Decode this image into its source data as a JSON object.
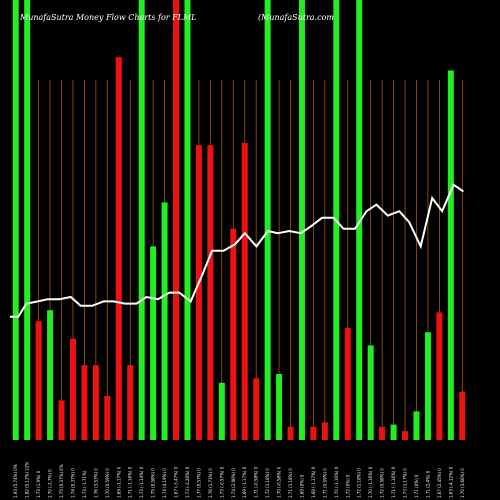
{
  "chart_data": {
    "type": "bar",
    "title": "MunafaSutra  Money Flow  Charts for FLML",
    "watermark": "(MunafaSutra.com",
    "ylim": [
      0,
      100
    ],
    "grid": "vertical",
    "colors": {
      "background": "#000000",
      "up": "#22ee22",
      "down": "#ee1111",
      "grid": "#a05a14",
      "line": "#ffffff"
    },
    "bars": [
      {
        "category": "1.93 (5.74%) 0%",
        "value": 100,
        "color": "up"
      },
      {
        "category": "1.82 (5.12%) 22%",
        "value": 100,
        "color": "up"
      },
      {
        "category": "1.73 (1.9%) 0",
        "value": 27,
        "color": "down"
      },
      {
        "category": "1.70 (-2.7%) 0",
        "value": 29.5,
        "color": "up"
      },
      {
        "category": "1.75 (0.37%) 6%",
        "value": 9,
        "color": "down"
      },
      {
        "category": "1.74 (0.37%) 0",
        "value": 23,
        "color": "down"
      },
      {
        "category": "1.73 (-1.71%)",
        "value": 17,
        "color": "down"
      },
      {
        "category": "1.76 (3.53%) 0",
        "value": 17,
        "color": "down"
      },
      {
        "category": "1.70 (0.59%) 0",
        "value": 10,
        "color": "down"
      },
      {
        "category": "1.69 (-1.17%) 0",
        "value": 87,
        "color": "down"
      },
      {
        "category": "1.71 (-1.16%) 0",
        "value": 17,
        "color": "down"
      },
      {
        "category": "1.73 (-1.14%) 0",
        "value": 100,
        "color": "up"
      },
      {
        "category": "1.75 (0.58%) 0",
        "value": 44,
        "color": "up"
      },
      {
        "category": "1.74 (4.19%) 0",
        "value": 54,
        "color": "up"
      },
      {
        "category": "1.67 (-3.47%) 0",
        "value": 100,
        "color": "down"
      },
      {
        "category": "1.73 (-2.26%) 0",
        "value": 100,
        "color": "up"
      },
      {
        "category": "1.77 (0.57%) 0",
        "value": 67,
        "color": "down"
      },
      {
        "category": "1.76 (1.73%) 0",
        "value": 67,
        "color": "down"
      },
      {
        "category": "1.73 (-0.57%) 0",
        "value": 13,
        "color": "up"
      },
      {
        "category": "1.74 (2.96%) 0",
        "value": 48,
        "color": "down"
      },
      {
        "category": "1.69 (-1.17%) 0",
        "value": 67.5,
        "color": "down"
      },
      {
        "category": "1.71 (-0.58%) 0",
        "value": 14,
        "color": "down"
      },
      {
        "category": "1.72 (1.18%) 0",
        "value": 100,
        "color": "up"
      },
      {
        "category": "1.70 (-0.58%) 0",
        "value": 15,
        "color": "up"
      },
      {
        "category": "1.71 (1.18%) 0",
        "value": 3,
        "color": "down"
      },
      {
        "category": "1.69 (0%) 0",
        "value": 100,
        "color": "up"
      },
      {
        "category": "1.69 (-1.17%) 0",
        "value": 3,
        "color": "down"
      },
      {
        "category": "1.71 (0.59%) 0",
        "value": 4,
        "color": "down"
      },
      {
        "category": "1.70 (-1.16%) 0",
        "value": 100,
        "color": "up"
      },
      {
        "category": "1.72 (0%) 0",
        "value": 25.5,
        "color": "down"
      },
      {
        "category": "1.72 (1.18%) 0",
        "value": 100,
        "color": "up"
      },
      {
        "category": "1.70 (-1.16%) 0",
        "value": 21.5,
        "color": "up"
      },
      {
        "category": "1.72 (0.58%) 0",
        "value": 3,
        "color": "down"
      },
      {
        "category": "1.71 (-1.16%) 0",
        "value": 3.5,
        "color": "up"
      },
      {
        "category": "1.73 (1.17%) 0",
        "value": 2,
        "color": "down"
      },
      {
        "category": "1.71 (0%) 0",
        "value": 6.5,
        "color": "up"
      },
      {
        "category": "1.71 (2.4%) 0",
        "value": 24.5,
        "color": "up"
      },
      {
        "category": "1.67 (2.45%) 0",
        "value": 29,
        "color": "down"
      },
      {
        "category": "1.63 (-4.12%) 0",
        "value": 84,
        "color": "up"
      },
      {
        "category": "1.70 (3.66%) 0",
        "value": 11,
        "color": "down"
      }
    ],
    "line_values": [
      28,
      28,
      31,
      31.5,
      32,
      32,
      32.5,
      30.5,
      30.5,
      31.5,
      31.5,
      31,
      31,
      32.5,
      32,
      33.5,
      33.5,
      31.5,
      37.5,
      43,
      43,
      44.5,
      47,
      44,
      47.5,
      47,
      47.5,
      47,
      48.5,
      50.5,
      50.5,
      48,
      48,
      52,
      53.5,
      51,
      52,
      49.5,
      44,
      55,
      52,
      58,
      56.5
    ],
    "line_x": [
      0,
      0.5,
      1,
      1.7,
      2.3,
      3,
      3.7,
      4.3,
      5,
      5.7,
      6.3,
      7,
      7.7,
      8.3,
      9,
      9.7,
      10.3,
      11,
      11.7,
      12.3,
      13,
      13.7,
      14.3,
      15,
      15.7,
      16.3,
      17,
      17.7,
      18.3,
      19,
      19.7,
      20.3,
      21,
      21.7,
      22.3,
      23,
      23.7,
      24.3,
      25,
      25.7,
      26.3,
      27,
      27.6
    ],
    "x_tick_labels": [
      "1.93 (5.74%) 0%",
      "1.82 (5.12%) 22%",
      "1.73 (1.9%) 0",
      "1.70 (-2.7%) 0",
      "1.75 (0.37%) 6%",
      "1.74 (0.37%) 0",
      "1.73 (-1.71%)",
      "1.76 (3.53%) 0",
      "1.70 (0.59%) 0",
      "1.69 (-1.17%) 0",
      "1.71 (-1.16%) 0",
      "1.73 (-1.14%) 0",
      "1.75 (0.58%) 0",
      "1.74 (4.19%) 0",
      "1.67 (-3.47%) 0",
      "1.73 (-2.26%) 0",
      "1.77 (0.57%) 0",
      "1.76 (1.73%) 0",
      "1.73 (-0.57%) 0",
      "1.74 (2.96%) 0",
      "1.69 (-1.17%) 0",
      "1.71 (-0.58%) 0",
      "1.72 (1.18%) 0",
      "1.70 (-0.58%) 0",
      "1.71 (1.18%) 0",
      "1.69 (0%) 0",
      "1.69 (-1.17%) 0",
      "1.71 (0.59%) 0",
      "1.70 (-1.16%) 0",
      "1.72 (0%) 0",
      "1.72 (1.18%) 0",
      "1.70 (-1.16%) 0",
      "1.72 (0.58%) 0",
      "1.71 (-1.16%) 0",
      "1.73 (1.17%) 0",
      "1.71 (0%) 0",
      "1.71 (2.4%) 0",
      "1.67 (2.45%) 0",
      "1.63 (-4.12%) 0",
      "1.70 (3.66%) 0"
    ]
  }
}
